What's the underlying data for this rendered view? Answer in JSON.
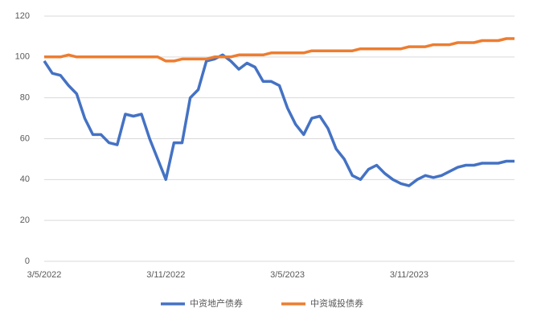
{
  "chart_data": {
    "type": "line",
    "categories": [
      "3/5/2022",
      null,
      null,
      null,
      null,
      null,
      null,
      null,
      null,
      null,
      null,
      null,
      null,
      null,
      null,
      "3/11/2022",
      null,
      null,
      null,
      null,
      null,
      null,
      null,
      null,
      null,
      null,
      null,
      null,
      null,
      null,
      "3/5/2023",
      null,
      null,
      null,
      null,
      null,
      null,
      null,
      null,
      null,
      null,
      null,
      null,
      null,
      null,
      "3/11/2023",
      null,
      null,
      null,
      null,
      null,
      null,
      null,
      null,
      null,
      null,
      null,
      null,
      null
    ],
    "series": [
      {
        "name": "中资地产债券",
        "color": "#4472c4",
        "values": [
          98,
          92,
          91,
          86,
          82,
          70,
          62,
          62,
          58,
          57,
          72,
          71,
          72,
          60,
          50,
          40,
          58,
          58,
          80,
          84,
          98,
          99,
          101,
          98,
          94,
          97,
          95,
          88,
          88,
          86,
          75,
          67,
          62,
          70,
          71,
          65,
          55,
          50,
          42,
          40,
          45,
          47,
          43,
          40,
          38,
          37,
          40,
          42,
          41,
          42,
          44,
          46,
          47,
          47,
          48,
          48,
          48,
          49,
          49
        ]
      },
      {
        "name": "中资城投债券",
        "color": "#ed7d31",
        "values": [
          100,
          100,
          100,
          101,
          100,
          100,
          100,
          100,
          100,
          100,
          100,
          100,
          100,
          100,
          100,
          98,
          98,
          99,
          99,
          99,
          99,
          100,
          100,
          100,
          101,
          101,
          101,
          101,
          102,
          102,
          102,
          102,
          102,
          103,
          103,
          103,
          103,
          103,
          103,
          104,
          104,
          104,
          104,
          104,
          104,
          105,
          105,
          105,
          106,
          106,
          106,
          107,
          107,
          107,
          108,
          108,
          108,
          109,
          109
        ]
      }
    ],
    "ylim": [
      0,
      120
    ],
    "yticks": [
      0,
      20,
      40,
      60,
      80,
      100,
      120
    ],
    "grid": true,
    "legend": "bottom"
  }
}
